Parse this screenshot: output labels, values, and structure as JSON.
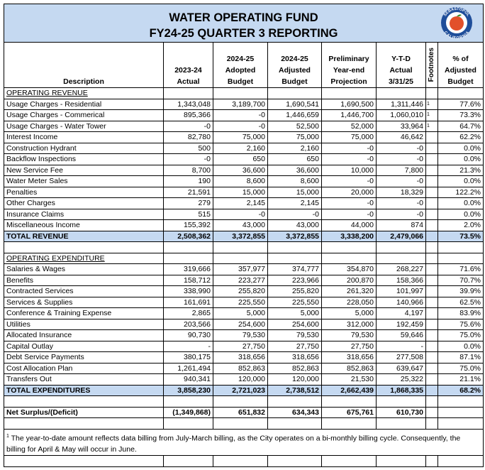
{
  "header": {
    "title": "WATER OPERATING FUND",
    "subtitle": "FY24-25 QUARTER 3 REPORTING",
    "logo": {
      "top": "SEBASTOPOL",
      "bottom": "CALIFORNIA"
    }
  },
  "table": {
    "columns": {
      "description": "Description",
      "actual": [
        "2023-24",
        "Actual"
      ],
      "adopted": [
        "2024-25",
        "Adopted",
        "Budget"
      ],
      "adjusted": [
        "2024-25",
        "Adjusted",
        "Budget"
      ],
      "projection": [
        "Preliminary",
        "Year-end",
        "Projection"
      ],
      "ytd": [
        "Y-T-D",
        "Actual",
        "3/31/25"
      ],
      "footnotes": "Footnotes",
      "pct": [
        "% of",
        "Adjusted",
        "Budget"
      ]
    },
    "revenue": {
      "label": "OPERATING REVENUE",
      "rows": [
        {
          "label": "Usage Charges - Residential",
          "values": [
            "1,343,048",
            "3,189,700",
            "1,690,541",
            "1,690,500",
            "1,311,446"
          ],
          "footnote": "1",
          "pct": "77.6%"
        },
        {
          "label": "Usage Charges - Commerical",
          "values": [
            "895,366",
            "-0",
            "1,446,659",
            "1,446,700",
            "1,060,010"
          ],
          "footnote": "1",
          "pct": "73.3%"
        },
        {
          "label": "Usage Charges - Water Tower",
          "values": [
            "-0",
            "-0",
            "52,500",
            "52,000",
            "33,964"
          ],
          "footnote": "1",
          "pct": "64.7%"
        },
        {
          "label": "Interest Income",
          "values": [
            "82,780",
            "75,000",
            "75,000",
            "75,000",
            "46,642"
          ],
          "pct": "62.2%"
        },
        {
          "label": "Construction Hydrant",
          "values": [
            "500",
            "2,160",
            "2,160",
            "-0",
            "-0"
          ],
          "pct": "0.0%"
        },
        {
          "label": "Backflow Inspections",
          "values": [
            "-0",
            "650",
            "650",
            "-0",
            "-0"
          ],
          "pct": "0.0%"
        },
        {
          "label": "New Service Fee",
          "values": [
            "8,700",
            "36,600",
            "36,600",
            "10,000",
            "7,800"
          ],
          "pct": "21.3%"
        },
        {
          "label": "Water Meter Sales",
          "values": [
            "190",
            "8,600",
            "8,600",
            "-0",
            "-0"
          ],
          "pct": "0.0%"
        },
        {
          "label": "Penalties",
          "values": [
            "21,591",
            "15,000",
            "15,000",
            "20,000",
            "18,329"
          ],
          "pct": "122.2%"
        },
        {
          "label": "Other Charges",
          "values": [
            "279",
            "2,145",
            "2,145",
            "-0",
            "-0"
          ],
          "pct": "0.0%"
        },
        {
          "label": "Insurance Claims",
          "values": [
            "515",
            "-0",
            "-0",
            "-0",
            "-0"
          ],
          "pct": "0.0%"
        },
        {
          "label": "Miscellaneous Income",
          "values": [
            "155,392",
            "43,000",
            "43,000",
            "44,000",
            "874"
          ],
          "pct": "2.0%"
        }
      ],
      "total": {
        "label": "TOTAL REVENUE",
        "values": [
          "2,508,362",
          "3,372,855",
          "3,372,855",
          "3,338,200",
          "2,479,066"
        ],
        "pct": "73.5%"
      }
    },
    "expenditure": {
      "label": "OPERATING EXPENDITURE",
      "rows": [
        {
          "label": "Salaries & Wages",
          "values": [
            "319,666",
            "357,977",
            "374,777",
            "354,870",
            "268,227"
          ],
          "pct": "71.6%"
        },
        {
          "label": "Benefits",
          "values": [
            "158,712",
            "223,277",
            "223,966",
            "200,870",
            "158,366"
          ],
          "pct": "70.7%"
        },
        {
          "label": "Contracted Services",
          "values": [
            "338,990",
            "255,820",
            "255,820",
            "261,320",
            "101,997"
          ],
          "pct": "39.9%"
        },
        {
          "label": "Services & Supplies",
          "values": [
            "161,691",
            "225,550",
            "225,550",
            "228,050",
            "140,966"
          ],
          "pct": "62.5%"
        },
        {
          "label": "Conference & Training Expense",
          "values": [
            "2,865",
            "5,000",
            "5,000",
            "5,000",
            "4,197"
          ],
          "pct": "83.9%"
        },
        {
          "label": "Utilities",
          "values": [
            "203,566",
            "254,600",
            "254,600",
            "312,000",
            "192,459"
          ],
          "pct": "75.6%"
        },
        {
          "label": "Allocated Insurance",
          "values": [
            "90,730",
            "79,530",
            "79,530",
            "79,530",
            "59,646"
          ],
          "pct": "75.0%"
        },
        {
          "label": "Capital Outlay",
          "values": [
            "-",
            "27,750",
            "27,750",
            "27,750",
            "-"
          ],
          "pct": "0.0%"
        },
        {
          "label": "Debt Service Payments",
          "values": [
            "380,175",
            "318,656",
            "318,656",
            "318,656",
            "277,508"
          ],
          "pct": "87.1%"
        },
        {
          "label": "Cost Allocation Plan",
          "values": [
            "1,261,494",
            "852,863",
            "852,863",
            "852,863",
            "639,647"
          ],
          "pct": "75.0%"
        },
        {
          "label": "Transfers Out",
          "values": [
            "940,341",
            "120,000",
            "120,000",
            "21,530",
            "25,322"
          ],
          "pct": "21.1%"
        }
      ],
      "total": {
        "label": "TOTAL EXPENDITURES",
        "values": [
          "3,858,230",
          "2,721,023",
          "2,738,512",
          "2,662,439",
          "1,868,335"
        ],
        "pct": "68.2%"
      }
    },
    "net": {
      "label": "Net Surplus/(Deficit)",
      "values": [
        "(1,349,868)",
        "651,832",
        "634,343",
        "675,761",
        "610,730"
      ]
    },
    "footnote": {
      "marker": "1",
      "text": " The year-to-date amount reflects data billing from July-March billing, as the City operates on a bi-monthly billing cycle. Consequently, the billing for April & May will occur in June."
    }
  }
}
